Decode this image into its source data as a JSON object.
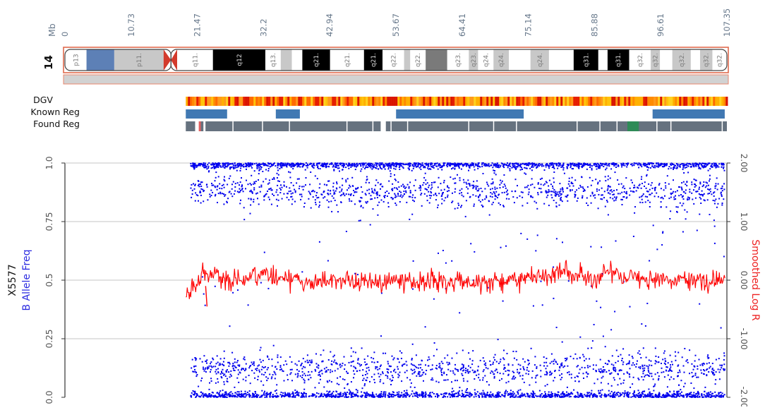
{
  "chart_data": {
    "type": "scatter",
    "chromosome": "14",
    "mb_axis": {
      "unit_label": "Mb",
      "range": [
        0,
        107.35
      ],
      "ticks": [
        "0",
        "10.73",
        "21.47",
        "32.2",
        "42.94",
        "53.67",
        "64.41",
        "75.14",
        "85.88",
        "96.61",
        "107.35"
      ]
    },
    "ideogram": {
      "bands": [
        {
          "start": 0.0,
          "end": 3.5,
          "stain": "white",
          "name": "p13"
        },
        {
          "start": 3.5,
          "end": 8.0,
          "stain": "stalk",
          "name": ""
        },
        {
          "start": 8.0,
          "end": 16.0,
          "stain": "gpos25",
          "name": "p11."
        },
        {
          "start": 16.0,
          "end": 17.2,
          "stain": "acen",
          "name": ""
        },
        {
          "start": 17.2,
          "end": 18.2,
          "stain": "acen",
          "name": ""
        },
        {
          "start": 18.2,
          "end": 24.0,
          "stain": "white",
          "name": "q11."
        },
        {
          "start": 24.0,
          "end": 32.5,
          "stain": "gpos100",
          "name": "q12"
        },
        {
          "start": 32.5,
          "end": 35.0,
          "stain": "white",
          "name": "q13."
        },
        {
          "start": 35.0,
          "end": 36.8,
          "stain": "gpos25",
          "name": ""
        },
        {
          "start": 36.8,
          "end": 38.5,
          "stain": "white",
          "name": ""
        },
        {
          "start": 38.5,
          "end": 43.0,
          "stain": "gpos100",
          "name": "q21."
        },
        {
          "start": 43.0,
          "end": 48.5,
          "stain": "white",
          "name": "q21."
        },
        {
          "start": 48.5,
          "end": 51.5,
          "stain": "gpos100",
          "name": "q21."
        },
        {
          "start": 51.5,
          "end": 55.0,
          "stain": "white",
          "name": "q22."
        },
        {
          "start": 55.0,
          "end": 56.0,
          "stain": "gpos25",
          "name": ""
        },
        {
          "start": 56.0,
          "end": 58.5,
          "stain": "white",
          "name": "q22."
        },
        {
          "start": 58.5,
          "end": 62.0,
          "stain": "gpos75",
          "name": ""
        },
        {
          "start": 62.0,
          "end": 65.5,
          "stain": "white",
          "name": "q23."
        },
        {
          "start": 65.5,
          "end": 67.0,
          "stain": "gpos25",
          "name": "q23."
        },
        {
          "start": 67.0,
          "end": 69.5,
          "stain": "white",
          "name": "q24."
        },
        {
          "start": 69.5,
          "end": 72.0,
          "stain": "gpos25",
          "name": "q24."
        },
        {
          "start": 72.0,
          "end": 75.5,
          "stain": "white",
          "name": ""
        },
        {
          "start": 75.5,
          "end": 78.5,
          "stain": "gpos25",
          "name": "q24."
        },
        {
          "start": 78.5,
          "end": 82.5,
          "stain": "white",
          "name": ""
        },
        {
          "start": 82.5,
          "end": 86.5,
          "stain": "gpos100",
          "name": "q31."
        },
        {
          "start": 86.5,
          "end": 88.0,
          "stain": "white",
          "name": ""
        },
        {
          "start": 88.0,
          "end": 91.5,
          "stain": "gpos100",
          "name": "q31."
        },
        {
          "start": 91.5,
          "end": 95.0,
          "stain": "white",
          "name": "q32."
        },
        {
          "start": 95.0,
          "end": 96.5,
          "stain": "gpos25",
          "name": "q32."
        },
        {
          "start": 96.5,
          "end": 98.5,
          "stain": "white",
          "name": ""
        },
        {
          "start": 98.5,
          "end": 101.5,
          "stain": "gpos25",
          "name": "q32."
        },
        {
          "start": 101.5,
          "end": 103.0,
          "stain": "white",
          "name": ""
        },
        {
          "start": 103.0,
          "end": 105.0,
          "stain": "gpos25",
          "name": "q32."
        },
        {
          "start": 105.0,
          "end": 107.35,
          "stain": "white",
          "name": "q32."
        }
      ]
    },
    "tracks": {
      "dgv_label": "DGV",
      "known_label": "Known Reg",
      "found_label": "Found Reg",
      "dgv_range": [
        19.6,
        107.35
      ],
      "known_regions": [
        [
          19.6,
          26.3
        ],
        [
          34.2,
          38.1
        ],
        [
          53.7,
          74.4
        ],
        [
          95.3,
          107.0
        ]
      ],
      "found_regions": [
        [
          19.6,
          21.4
        ],
        [
          22.3,
          23.0
        ],
        [
          23.4,
          28.6
        ],
        [
          28.8,
          34.3
        ],
        [
          34.5,
          39.5
        ],
        [
          39.7,
          50.6
        ],
        [
          50.8,
          55.6
        ],
        [
          55.8,
          57.2
        ],
        [
          58.2,
          59.1
        ],
        [
          59.3,
          62.3
        ],
        [
          62.5,
          74.1
        ],
        [
          74.3,
          78.9
        ],
        [
          79.1,
          83.3
        ],
        [
          83.5,
          95.0
        ],
        [
          95.2,
          99.4
        ],
        [
          99.6,
          102.7
        ],
        [
          102.9,
          110.4
        ],
        [
          110.6,
          113.1
        ],
        [
          113.3,
          123.0
        ],
        [
          123.2,
          124.0
        ]
      ],
      "found_highlight": [
        [
          22.1,
          22.5,
          "#e06060"
        ],
        [
          104.8,
          107.0,
          "#2e8b57"
        ]
      ]
    },
    "left_axis": {
      "label": "B Allele Freq",
      "ylim": [
        0.0,
        1.0
      ],
      "ticks": [
        "0.0",
        "0.25",
        "0.5",
        "0.75",
        "1.0"
      ]
    },
    "right_axis": {
      "label": "Smoothed Log R",
      "ylim": [
        -2.0,
        2.0
      ],
      "ticks": [
        "-2.00",
        "-1.00",
        "0.00",
        "1.00",
        "2.00"
      ]
    },
    "sample": "X5577",
    "grid": true,
    "series": [
      {
        "name": "B Allele Freq",
        "color": "#0000ee",
        "data_start_mb": 20.3,
        "clusters": [
          0.0,
          0.12,
          0.88,
          1.0
        ]
      },
      {
        "name": "Smoothed Log R",
        "color": "#ff0000",
        "data_start_mb": 19.6,
        "level": 0.0
      }
    ]
  }
}
